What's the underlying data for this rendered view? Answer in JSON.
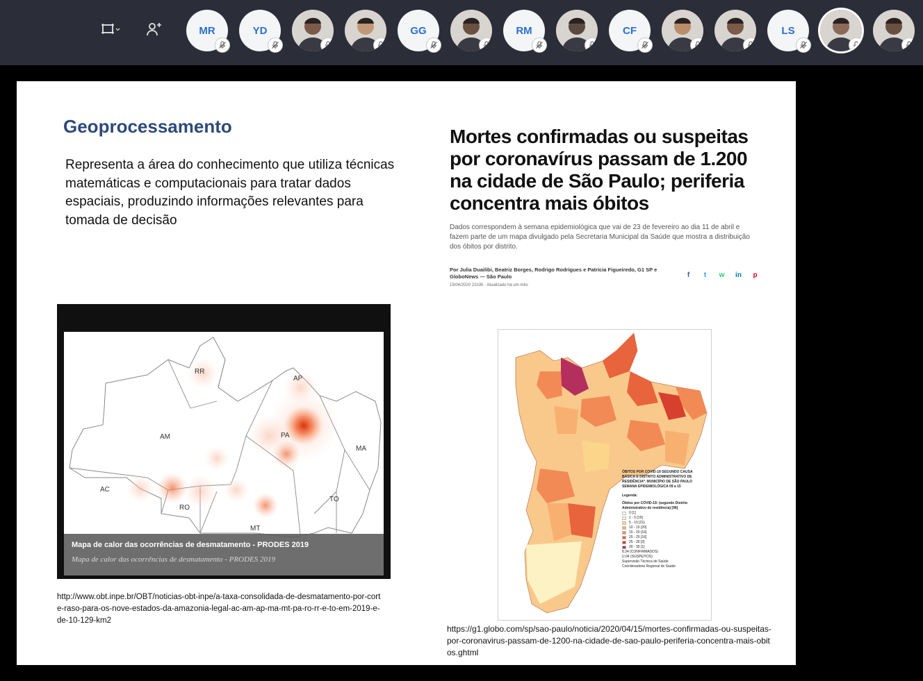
{
  "toolbar": {
    "layout_icon": "layout-icon",
    "add_person_icon": "add-person-icon"
  },
  "participants": [
    {
      "initials": "MR",
      "type": "initials"
    },
    {
      "initials": "YD",
      "type": "initials"
    },
    {
      "initials": "",
      "type": "photo"
    },
    {
      "initials": "",
      "type": "photo"
    },
    {
      "initials": "GG",
      "type": "initials"
    },
    {
      "initials": "",
      "type": "photo"
    },
    {
      "initials": "RM",
      "type": "initials"
    },
    {
      "initials": "",
      "type": "photo"
    },
    {
      "initials": "CF",
      "type": "initials"
    },
    {
      "initials": "",
      "type": "photo"
    },
    {
      "initials": "",
      "type": "photo"
    },
    {
      "initials": "LS",
      "type": "initials"
    },
    {
      "initials": "",
      "type": "photo"
    },
    {
      "initials": "",
      "type": "photo"
    }
  ],
  "slide": {
    "left": {
      "title": "Geoprocessamento",
      "description": "Representa a área do conhecimento que utiliza técnicas matemáticas e computacionais para tratar dados espaciais, produzindo informações relevantes para tomada de decisão",
      "map_caption": "Mapa de calor das ocorrências de desmatamento - PRODES 2019",
      "map_caption_italic": "Mapa de calor das ocorrências de desmatamento - PRODES 2019",
      "map_labels": {
        "rr": "RR",
        "ap": "AP",
        "am": "AM",
        "pa": "PA",
        "ma": "MA",
        "ac": "AC",
        "ro": "RO",
        "to": "TO",
        "mt": "MT"
      },
      "source_url": "http://www.obt.inpe.br/OBT/noticias-obt-inpe/a-taxa-consolidada-de-desmatamento-por-corte-raso-para-os-nove-estados-da-amazonia-legal-ac-am-ap-ma-mt-pa-ro-rr-e-to-em-2019-e-de-10-129-km2"
    },
    "right": {
      "headline": "Mortes confirmadas ou suspeitas por coronavírus passam de 1.200 na cidade de São Paulo; periferia concentra mais óbitos",
      "subheadline": "Dados correspondem à semana epidemiológica que vai de 23 de fevereiro ao dia 11 de abril e fazem parte de um mapa divulgado pela Secretaria Municipal da Saúde que mostra a distribuição dos óbitos por distrito.",
      "byline": "Por Julia Duailibi, Beatriz Borges, Rodrigo Rodrigues e Patrícia Figueiredo, G1 SP e GloboNews — São Paulo",
      "dateline": "15/04/2020 21h35 · Atualizado há um mês",
      "legend": {
        "title": "ÓBITOS POR COVID-19 SEGUNDO CAUSA BÁSICA E DISTRITO ADMINISTRATIVO DE RESIDÊNCIA*. MUNICÍPIO DE SÃO PAULO SEMANA EPIDEMIOLÓGICA 09 a 15",
        "legenda": "Legenda:",
        "subtitle": "Óbitos por COVID-19: (segundo Distrito Administrativo de residência) [96]",
        "items": [
          {
            "label": "0 [1]",
            "color": "#ffffff"
          },
          {
            "label": "1 - 5 [19]",
            "color": "#fdf2c4"
          },
          {
            "label": "5 - 10 [21]",
            "color": "#fbd68a"
          },
          {
            "label": "10 - 15 [20]",
            "color": "#f8b070"
          },
          {
            "label": "15 - 20 [16]",
            "color": "#f28a55"
          },
          {
            "label": "20 - 25 [16]",
            "color": "#e8643c"
          },
          {
            "label": "25 - 30 [2]",
            "color": "#d8402e"
          },
          {
            "label": "30 - 35 [1]",
            "color": "#b52f5e"
          }
        ],
        "extra1": "8.34 (CONFIRMADOS)",
        "extra2": "U.04 (SUSPEITOS)",
        "extra3": "Supervisão Técnica de Saúde",
        "extra4": "Coordenadoria Regional de Saúde"
      },
      "source_url": "https://g1.globo.com/sp/sao-paulo/noticia/2020/04/15/mortes-confirmadas-ou-suspeitas-por-coronavirus-passam-de-1200-na-cidade-de-sao-paulo-periferia-concentra-mais-obitos.ghtml"
    }
  },
  "colors": {
    "topbar": "#2b2d38",
    "initials": "#2a6fcf",
    "title": "#2e4a7a",
    "heat": "#e8501e"
  }
}
